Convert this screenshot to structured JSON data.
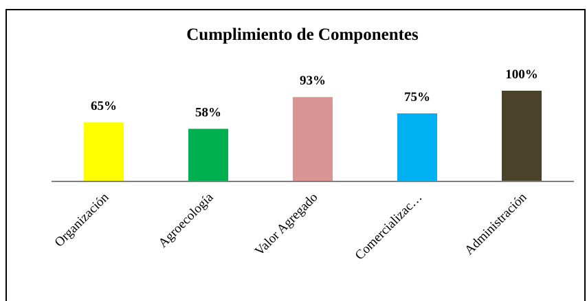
{
  "chart_data": {
    "type": "bar",
    "title": "Cumplimiento de Componentes",
    "categories": [
      "Organización",
      "Agroecología",
      "Valor Agregado",
      "Comercializac…",
      "Administración"
    ],
    "values": [
      65,
      58,
      93,
      75,
      100
    ],
    "value_labels": [
      "65%",
      "58%",
      "93%",
      "75%",
      "100%"
    ],
    "colors": [
      "#ffff00",
      "#00b050",
      "#d99594",
      "#00b0f0",
      "#4a422a"
    ],
    "ylim": [
      0,
      100
    ]
  }
}
